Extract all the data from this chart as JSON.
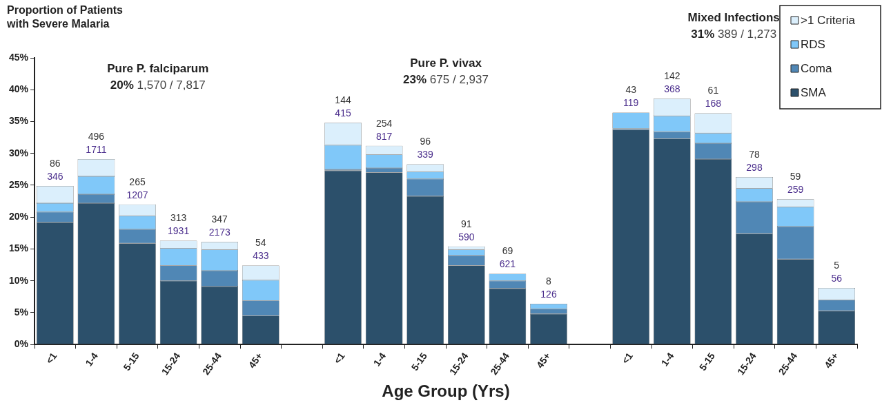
{
  "chart_data": {
    "type": "bar",
    "stacked": true,
    "ylabel": "Proportion of Patients\nwith Severe Malaria",
    "xlabel": "Age Group (Yrs)",
    "categories": [
      "<1",
      "1-4",
      "5-15",
      "15-24",
      "25-44",
      "45+",
      null,
      "<1",
      "1-4",
      "5-15",
      "15-24",
      "25-44",
      "45+",
      null,
      "<1",
      "1-4",
      "5-15",
      "15-24",
      "25-44",
      "45+"
    ],
    "series": [
      {
        "name": "SMA",
        "color": "#2c506b",
        "values": [
          19.2,
          22.2,
          15.9,
          10.0,
          9.1,
          4.5,
          null,
          27.3,
          27.0,
          23.3,
          12.4,
          8.8,
          4.8,
          null,
          33.7,
          32.3,
          29.1,
          17.4,
          13.4,
          5.3
        ]
      },
      {
        "name": "Coma",
        "color": "#5087b5",
        "values": [
          1.6,
          1.4,
          2.2,
          2.4,
          2.5,
          2.4,
          null,
          0.2,
          0.7,
          2.7,
          1.6,
          1.2,
          0.8,
          null,
          0.2,
          1.1,
          2.5,
          5.0,
          5.1,
          1.7
        ]
      },
      {
        "name": "RDS",
        "color": "#80c8f9",
        "values": [
          1.4,
          2.8,
          2.1,
          2.7,
          3.3,
          3.2,
          null,
          3.8,
          2.1,
          1.1,
          0.9,
          1.1,
          0.8,
          null,
          2.5,
          2.5,
          1.6,
          2.1,
          3.1,
          0
        ]
      },
      {
        "name": ">1 Criteria",
        "color": "#dbeffc",
        "values": [
          2.7,
          2.7,
          1.8,
          1.2,
          1.2,
          2.3,
          null,
          3.5,
          1.4,
          1.2,
          0.5,
          0,
          0,
          null,
          0,
          2.7,
          3.1,
          1.8,
          1.2,
          1.9
        ]
      }
    ],
    "ylim": [
      0,
      45
    ],
    "yticks": [
      {
        "value": 0,
        "label": "0%"
      },
      {
        "value": 5,
        "label": "5%"
      },
      {
        "value": 10,
        "label": "10%"
      },
      {
        "value": 15,
        "label": "15%"
      },
      {
        "value": 20,
        "label": "20%"
      },
      {
        "value": 25,
        "label": "25%"
      },
      {
        "value": 30,
        "label": "30%"
      },
      {
        "value": 35,
        "label": "35%"
      },
      {
        "value": 40,
        "label": "40%"
      },
      {
        "value": 45,
        "label": "45%"
      }
    ],
    "legend": "top right",
    "annotations": [
      "Pure P. falciparum",
      "20% 1,570 / 7,817",
      "Pure P. vivax",
      "23% 675 / 2,937",
      "Mixed Infections",
      "31% 389 / 1,273",
      "86\n346",
      "496\n1711",
      "265\n1207",
      "313\n1931",
      "347\n2173",
      "54\n433",
      "144\n415",
      "254\n817",
      "96\n339",
      "91\n590",
      "69\n621",
      "8\n126",
      "43\n119",
      "142\n368",
      "61\n168",
      "78\n298",
      "59\n259",
      "5\n56"
    ]
  }
}
